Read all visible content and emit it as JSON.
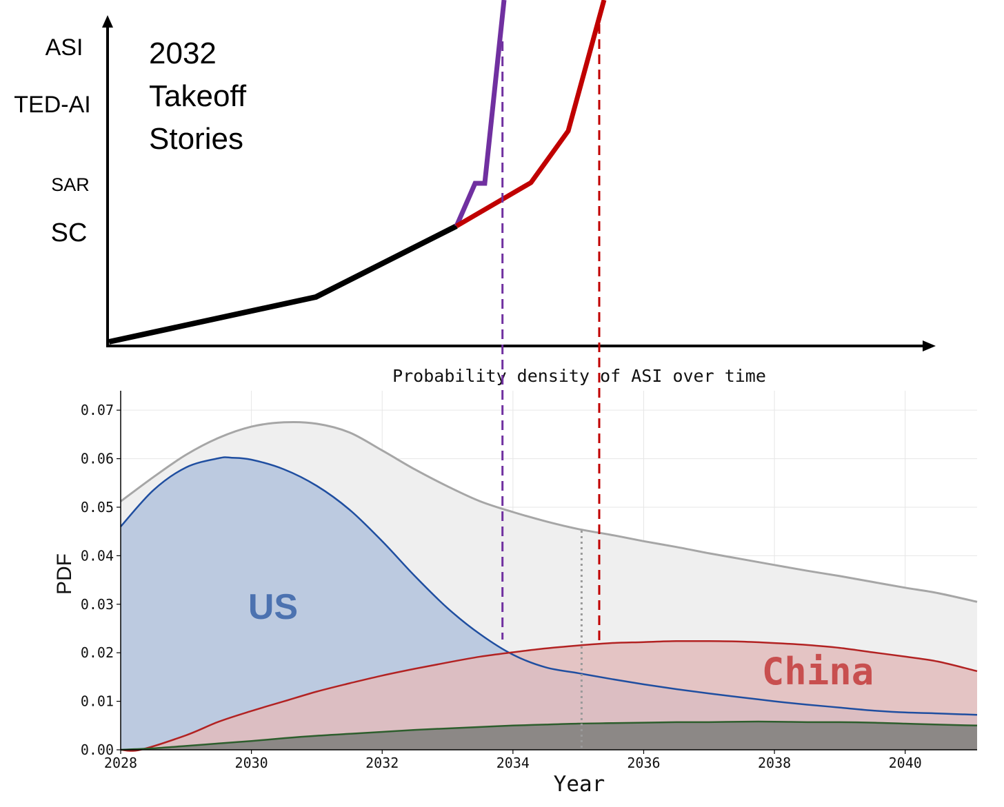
{
  "takeoff": {
    "title_lines": [
      "2032",
      "Takeoff",
      "Stories"
    ],
    "milestones": [
      "ASI",
      "TED-AI",
      "SAR",
      "SC"
    ],
    "colors": {
      "baseline": "#000000",
      "fast": "#7030a0",
      "slow": "#c00000"
    }
  },
  "chart_data": {
    "type": "area",
    "title": "Probability density of ASI over time",
    "xlabel": "Year",
    "ylabel": "PDF",
    "xlim": [
      2028,
      2041.1
    ],
    "ylim": [
      0,
      0.074
    ],
    "x_ticks": [
      "2028",
      "2030",
      "2032",
      "2034",
      "2036",
      "2038",
      "2040"
    ],
    "y_ticks": [
      "0.00",
      "0.01",
      "0.02",
      "0.03",
      "0.04",
      "0.05",
      "0.06",
      "0.07"
    ],
    "grid": true,
    "series_labels": {
      "us": "US",
      "china": "China"
    },
    "series": [
      {
        "key": "total",
        "color": "#a6a6a6",
        "fill": "#efefef",
        "x": [
          2028,
          2028.5,
          2029,
          2029.5,
          2030,
          2030.5,
          2031,
          2031.5,
          2032,
          2032.5,
          2033,
          2033.5,
          2034,
          2034.5,
          2035,
          2035.5,
          2036,
          2036.5,
          2037,
          2037.5,
          2038,
          2038.5,
          2039,
          2039.5,
          2040,
          2040.5,
          2041.1
        ],
        "y": [
          0.0512,
          0.0562,
          0.0608,
          0.0643,
          0.0666,
          0.0675,
          0.0672,
          0.0654,
          0.0617,
          0.0578,
          0.0543,
          0.0512,
          0.049,
          0.0471,
          0.0455,
          0.0443,
          0.043,
          0.0418,
          0.0405,
          0.0393,
          0.0381,
          0.0369,
          0.0358,
          0.0346,
          0.0334,
          0.0323,
          0.0305
        ]
      },
      {
        "key": "us",
        "color": "#1f4ea0",
        "fill": "#b3c3dd",
        "x": [
          2028,
          2028.5,
          2029,
          2029.5,
          2029.7,
          2030,
          2030.5,
          2031,
          2031.5,
          2032,
          2032.5,
          2033,
          2033.5,
          2034,
          2034.5,
          2035,
          2035.5,
          2036,
          2036.5,
          2037,
          2037.5,
          2038,
          2038.5,
          2039,
          2039.5,
          2040,
          2040.5,
          2041.1
        ],
        "y": [
          0.046,
          0.0535,
          0.0582,
          0.0601,
          0.0602,
          0.0598,
          0.0578,
          0.0544,
          0.0495,
          0.043,
          0.0358,
          0.0292,
          0.0238,
          0.0196,
          0.017,
          0.0158,
          0.0146,
          0.0135,
          0.0125,
          0.0116,
          0.0108,
          0.01,
          0.0093,
          0.0087,
          0.0081,
          0.0077,
          0.0075,
          0.0072
        ]
      },
      {
        "key": "china",
        "color": "#b22222",
        "fill": "#e2bcbc",
        "x": [
          2028,
          2028.3,
          2029,
          2029.5,
          2030,
          2030.5,
          2031,
          2031.5,
          2032,
          2032.5,
          2033,
          2033.5,
          2034,
          2034.5,
          2035,
          2035.5,
          2036,
          2036.5,
          2037,
          2037.5,
          2038,
          2038.5,
          2039,
          2039.5,
          2040,
          2040.5,
          2041.1
        ],
        "y": [
          0,
          0,
          0.003,
          0.0058,
          0.008,
          0.01,
          0.012,
          0.0137,
          0.0153,
          0.0167,
          0.018,
          0.0192,
          0.0201,
          0.0209,
          0.0215,
          0.022,
          0.0222,
          0.0224,
          0.0224,
          0.0223,
          0.022,
          0.0216,
          0.021,
          0.0201,
          0.0192,
          0.0182,
          0.0162
        ]
      },
      {
        "key": "overlap",
        "color": "#2d5e2d",
        "fill": "#8c8886",
        "x": [
          2028,
          2028.5,
          2029,
          2029.5,
          2030,
          2030.5,
          2031,
          2031.5,
          2032,
          2032.5,
          2033,
          2033.5,
          2034,
          2034.5,
          2035,
          2035.5,
          2036,
          2036.5,
          2037,
          2037.5,
          2038,
          2038.5,
          2039,
          2039.5,
          2040,
          2040.5,
          2041.1
        ],
        "y": [
          0,
          0.0003,
          0.0008,
          0.0013,
          0.0018,
          0.0024,
          0.0029,
          0.0033,
          0.0037,
          0.0041,
          0.0044,
          0.0047,
          0.005,
          0.0052,
          0.0054,
          0.0055,
          0.0056,
          0.0057,
          0.0057,
          0.0058,
          0.0058,
          0.0057,
          0.0057,
          0.0056,
          0.0054,
          0.0052,
          0.005
        ]
      }
    ],
    "vlines": [
      {
        "x": 2033.84,
        "color": "#7030a0",
        "style": "dashed"
      },
      {
        "x": 2035.32,
        "color": "#c00000",
        "style": "dashed"
      },
      {
        "x": 2035.05,
        "color": "#9a9a9a",
        "style": "dotted"
      }
    ]
  }
}
